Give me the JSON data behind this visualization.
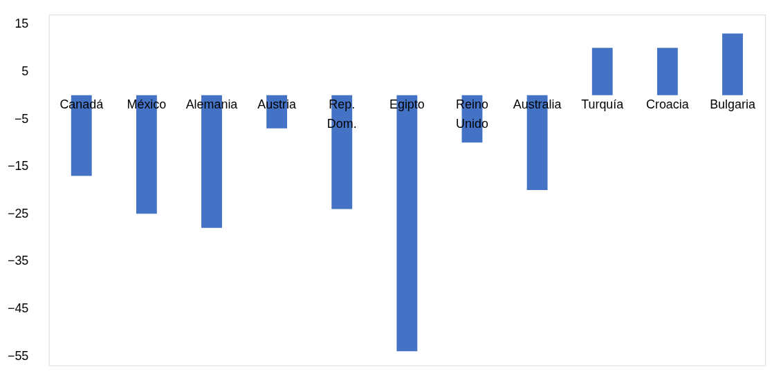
{
  "chart_data": {
    "type": "bar",
    "categories": [
      "Canadá",
      "México",
      "Alemania",
      "Austria",
      "Rep. Dom.",
      "Egipto",
      "Reino Unido",
      "Australia",
      "Turquía",
      "Croacia",
      "Bulgaria"
    ],
    "values": [
      -17,
      -25,
      -28,
      -7,
      -24,
      -54,
      -10,
      -20,
      10,
      10,
      13
    ],
    "color": "#4472c4",
    "ylim": [
      -57,
      17
    ],
    "yticks": [
      15,
      5,
      -5,
      -15,
      -25,
      -35,
      -45,
      -55
    ],
    "grid": false
  }
}
